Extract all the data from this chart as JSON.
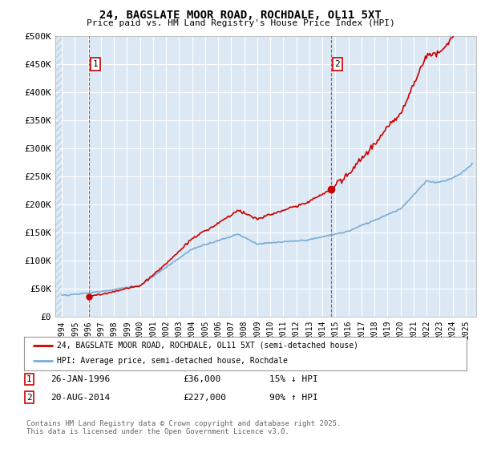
{
  "title": "24, BAGSLATE MOOR ROAD, ROCHDALE, OL11 5XT",
  "subtitle": "Price paid vs. HM Land Registry's House Price Index (HPI)",
  "ylim": [
    0,
    500000
  ],
  "yticks": [
    0,
    50000,
    100000,
    150000,
    200000,
    250000,
    300000,
    350000,
    400000,
    450000,
    500000
  ],
  "ytick_labels": [
    "£0",
    "£50K",
    "£100K",
    "£150K",
    "£200K",
    "£250K",
    "£300K",
    "£350K",
    "£400K",
    "£450K",
    "£500K"
  ],
  "background_color": "#dce9f5",
  "grid_color": "#ffffff",
  "line_color_property": "#cc0000",
  "line_color_hpi": "#7aadd4",
  "point1_x": 1996.07,
  "point1_y": 36000,
  "point2_x": 2014.64,
  "point2_y": 227000,
  "legend_label1": "24, BAGSLATE MOOR ROAD, ROCHDALE, OL11 5XT (semi-detached house)",
  "legend_label2": "HPI: Average price, semi-detached house, Rochdale",
  "xlim_start": 1993.5,
  "xlim_end": 2025.8
}
